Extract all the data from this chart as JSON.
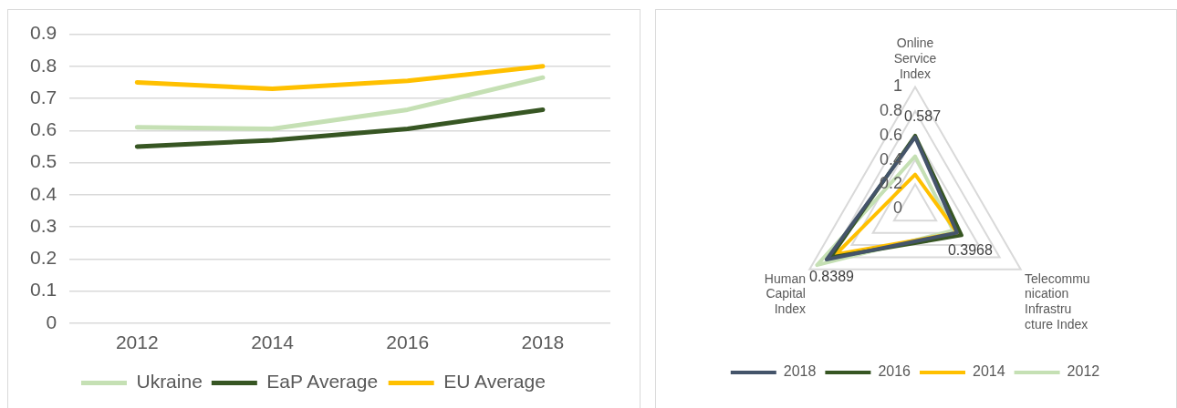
{
  "chart_data": [
    {
      "type": "line",
      "categories": [
        "2012",
        "2014",
        "2016",
        "2018"
      ],
      "ylim": [
        0,
        0.9
      ],
      "yticks": [
        0,
        0.1,
        0.2,
        0.3,
        0.4,
        0.5,
        0.6,
        0.7,
        0.8,
        0.9
      ],
      "grid": "y",
      "legend": "bottom",
      "series": [
        {
          "name": "Ukraine",
          "color": "#c5e0b4",
          "values": [
            0.61,
            0.605,
            0.665,
            0.765
          ]
        },
        {
          "name": "EaP Average",
          "color": "#375623",
          "values": [
            0.55,
            0.57,
            0.605,
            0.665
          ]
        },
        {
          "name": "EU Average",
          "color": "#ffc000",
          "values": [
            0.75,
            0.73,
            0.755,
            0.8
          ]
        }
      ]
    },
    {
      "type": "radar",
      "categories": [
        "Online Service Index",
        "Telecommunication Infrastructure Index",
        "Human Capital Index"
      ],
      "ylim": [
        0,
        1
      ],
      "yticks": [
        0,
        0.2,
        0.4,
        0.6,
        0.8,
        1
      ],
      "grid": true,
      "legend": "bottom",
      "series": [
        {
          "name": "2018",
          "color": "#44546a",
          "values": [
            0.587,
            0.3968,
            0.8389
          ],
          "value_labels": [
            "0.587",
            "0.3968",
            "0.8389"
          ]
        },
        {
          "name": "2016",
          "color": "#375623",
          "values": [
            0.6,
            0.44,
            0.8
          ]
        },
        {
          "name": "2014",
          "color": "#ffc000",
          "values": [
            0.28,
            0.4,
            0.75
          ]
        },
        {
          "name": "2012",
          "color": "#c5e0b4",
          "values": [
            0.43,
            0.36,
            0.93
          ]
        }
      ]
    }
  ]
}
